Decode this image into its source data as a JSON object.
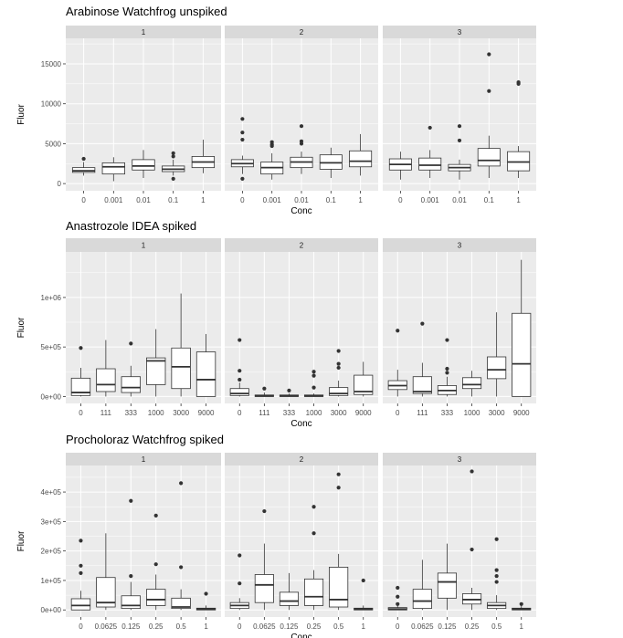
{
  "chart_data": [
    {
      "type": "box",
      "title": "Arabinose Watchfrog unspiked",
      "xlabel": "Conc",
      "ylabel": "Fluor",
      "ylim": [
        -900,
        18200
      ],
      "yticks": [
        0,
        5000,
        10000,
        15000
      ],
      "ytick_labels": [
        "0",
        "5000",
        "10000",
        "15000"
      ],
      "categories": [
        "0",
        "0.001",
        "0.01",
        "0.1",
        "1"
      ],
      "panels": [
        {
          "strip": "1",
          "boxes": [
            {
              "q1": 1400,
              "median": 1600,
              "q3": 2000,
              "lo": 1000,
              "hi": 2700,
              "outliers": [
                3100
              ]
            },
            {
              "q1": 1200,
              "median": 2100,
              "q3": 2600,
              "lo": 300,
              "hi": 3300,
              "outliers": []
            },
            {
              "q1": 1700,
              "median": 2200,
              "q3": 3000,
              "lo": 700,
              "hi": 4200,
              "outliers": []
            },
            {
              "q1": 1500,
              "median": 1800,
              "q3": 2200,
              "lo": 1000,
              "hi": 3000,
              "outliers": [
                3400,
                3800,
                600
              ]
            },
            {
              "q1": 2000,
              "median": 2700,
              "q3": 3400,
              "lo": 1300,
              "hi": 5500,
              "outliers": []
            }
          ]
        },
        {
          "strip": "2",
          "boxes": [
            {
              "q1": 2100,
              "median": 2500,
              "q3": 3000,
              "lo": 1200,
              "hi": 3500,
              "outliers": [
                8100,
                6400,
                5500,
                600
              ]
            },
            {
              "q1": 1200,
              "median": 2000,
              "q3": 2700,
              "lo": 500,
              "hi": 3800,
              "outliers": [
                5200,
                4900,
                4700
              ]
            },
            {
              "q1": 2000,
              "median": 2700,
              "q3": 3300,
              "lo": 1200,
              "hi": 4000,
              "outliers": [
                7200,
                5300,
                5000
              ]
            },
            {
              "q1": 1800,
              "median": 2600,
              "q3": 3600,
              "lo": 700,
              "hi": 4500,
              "outliers": []
            },
            {
              "q1": 2100,
              "median": 2800,
              "q3": 4100,
              "lo": 1000,
              "hi": 6200,
              "outliers": []
            }
          ]
        },
        {
          "strip": "3",
          "boxes": [
            {
              "q1": 1700,
              "median": 2400,
              "q3": 3100,
              "lo": 500,
              "hi": 4000,
              "outliers": []
            },
            {
              "q1": 1700,
              "median": 2300,
              "q3": 3200,
              "lo": 700,
              "hi": 4200,
              "outliers": [
                7000
              ]
            },
            {
              "q1": 1600,
              "median": 2000,
              "q3": 2400,
              "lo": 500,
              "hi": 3000,
              "outliers": [
                7200,
                5400
              ]
            },
            {
              "q1": 2200,
              "median": 2900,
              "q3": 4400,
              "lo": 700,
              "hi": 6000,
              "outliers": [
                16200,
                11600
              ]
            },
            {
              "q1": 1600,
              "median": 2700,
              "q3": 4000,
              "lo": 700,
              "hi": 4700,
              "outliers": [
                12700,
                12500
              ]
            }
          ]
        }
      ]
    },
    {
      "type": "box",
      "title": "Anastrozole IDEA spiked",
      "xlabel": "Conc",
      "ylabel": "Fluor",
      "ylim": [
        -70000,
        1460000
      ],
      "yticks": [
        0,
        500000,
        1000000
      ],
      "ytick_labels": [
        "0e+00",
        "5e+05",
        "1e+06"
      ],
      "categories": [
        "0",
        "111",
        "333",
        "1000",
        "3000",
        "9000"
      ],
      "panels": [
        {
          "strip": "1",
          "boxes": [
            {
              "q1": 10000,
              "median": 40000,
              "q3": 185000,
              "lo": 0,
              "hi": 290000,
              "outliers": [
                490000
              ]
            },
            {
              "q1": 50000,
              "median": 120000,
              "q3": 280000,
              "lo": 0,
              "hi": 570000,
              "outliers": []
            },
            {
              "q1": 40000,
              "median": 90000,
              "q3": 200000,
              "lo": 0,
              "hi": 310000,
              "outliers": [
                535000
              ]
            },
            {
              "q1": 120000,
              "median": 360000,
              "q3": 390000,
              "lo": 0,
              "hi": 680000,
              "outliers": []
            },
            {
              "q1": 80000,
              "median": 300000,
              "q3": 490000,
              "lo": 0,
              "hi": 1040000,
              "outliers": []
            },
            {
              "q1": 0,
              "median": 170000,
              "q3": 450000,
              "lo": 0,
              "hi": 630000,
              "outliers": []
            }
          ]
        },
        {
          "strip": "2",
          "boxes": [
            {
              "q1": 10000,
              "median": 30000,
              "q3": 80000,
              "lo": 0,
              "hi": 140000,
              "outliers": [
                570000,
                260000,
                170000
              ]
            },
            {
              "q1": 0,
              "median": 5000,
              "q3": 15000,
              "lo": 0,
              "hi": 40000,
              "outliers": [
                80000
              ]
            },
            {
              "q1": 0,
              "median": 5000,
              "q3": 15000,
              "lo": 0,
              "hi": 30000,
              "outliers": [
                60000
              ]
            },
            {
              "q1": 0,
              "median": 5000,
              "q3": 15000,
              "lo": 0,
              "hi": 30000,
              "outliers": [
                250000,
                210000,
                90000
              ]
            },
            {
              "q1": 10000,
              "median": 30000,
              "q3": 90000,
              "lo": 0,
              "hi": 160000,
              "outliers": [
                460000,
                330000,
                290000
              ]
            },
            {
              "q1": 20000,
              "median": 50000,
              "q3": 215000,
              "lo": 0,
              "hi": 350000,
              "outliers": []
            }
          ]
        },
        {
          "strip": "3",
          "boxes": [
            {
              "q1": 70000,
              "median": 110000,
              "q3": 160000,
              "lo": 0,
              "hi": 270000,
              "outliers": [
                665000
              ]
            },
            {
              "q1": 30000,
              "median": 50000,
              "q3": 200000,
              "lo": 0,
              "hi": 340000,
              "outliers": [
                735000
              ]
            },
            {
              "q1": 20000,
              "median": 60000,
              "q3": 110000,
              "lo": 0,
              "hi": 200000,
              "outliers": [
                570000,
                280000,
                240000
              ]
            },
            {
              "q1": 80000,
              "median": 120000,
              "q3": 190000,
              "lo": 0,
              "hi": 260000,
              "outliers": []
            },
            {
              "q1": 180000,
              "median": 270000,
              "q3": 400000,
              "lo": 0,
              "hi": 850000,
              "outliers": []
            },
            {
              "q1": 0,
              "median": 330000,
              "q3": 840000,
              "lo": 0,
              "hi": 1380000,
              "outliers": []
            }
          ]
        }
      ]
    },
    {
      "type": "box",
      "title": "Procholoraz Watchfrog spiked",
      "xlabel": "Conc",
      "ylabel": "Fluor",
      "ylim": [
        -24000,
        490000
      ],
      "yticks": [
        0,
        100000,
        200000,
        300000,
        400000
      ],
      "ytick_labels": [
        "0e+00",
        "1e+05",
        "2e+05",
        "3e+05",
        "4e+05"
      ],
      "categories": [
        "0",
        "0.0625",
        "0.125",
        "0.25",
        "0.5",
        "1"
      ],
      "panels": [
        {
          "strip": "1",
          "boxes": [
            {
              "q1": 0,
              "median": 15000,
              "q3": 38000,
              "lo": 0,
              "hi": 65000,
              "outliers": [
                235000,
                150000,
                125000
              ]
            },
            {
              "q1": 10000,
              "median": 25000,
              "q3": 110000,
              "lo": 0,
              "hi": 260000,
              "outliers": []
            },
            {
              "q1": 5000,
              "median": 15000,
              "q3": 48000,
              "lo": 0,
              "hi": 95000,
              "outliers": [
                370000,
                115000
              ]
            },
            {
              "q1": 15000,
              "median": 35000,
              "q3": 70000,
              "lo": 0,
              "hi": 120000,
              "outliers": [
                320000,
                155000
              ]
            },
            {
              "q1": 5000,
              "median": 10000,
              "q3": 40000,
              "lo": 0,
              "hi": 70000,
              "outliers": [
                430000,
                145000
              ]
            },
            {
              "q1": 0,
              "median": 3000,
              "q3": 6000,
              "lo": 0,
              "hi": 15000,
              "outliers": [
                55000
              ]
            }
          ]
        },
        {
          "strip": "2",
          "boxes": [
            {
              "q1": 5000,
              "median": 15000,
              "q3": 25000,
              "lo": 0,
              "hi": 40000,
              "outliers": [
                185000,
                90000
              ]
            },
            {
              "q1": 25000,
              "median": 85000,
              "q3": 120000,
              "lo": 0,
              "hi": 225000,
              "outliers": [
                335000
              ]
            },
            {
              "q1": 15000,
              "median": 30000,
              "q3": 60000,
              "lo": 0,
              "hi": 125000,
              "outliers": []
            },
            {
              "q1": 15000,
              "median": 45000,
              "q3": 105000,
              "lo": 0,
              "hi": 135000,
              "outliers": [
                350000,
                260000
              ]
            },
            {
              "q1": 10000,
              "median": 35000,
              "q3": 145000,
              "lo": 0,
              "hi": 190000,
              "outliers": [
                460000,
                415000
              ]
            },
            {
              "q1": 0,
              "median": 3000,
              "q3": 6000,
              "lo": 0,
              "hi": 15000,
              "outliers": [
                100000
              ]
            }
          ]
        },
        {
          "strip": "3",
          "boxes": [
            {
              "q1": 0,
              "median": 3000,
              "q3": 8000,
              "lo": 0,
              "hi": 15000,
              "outliers": [
                75000,
                45000,
                20000
              ]
            },
            {
              "q1": 5000,
              "median": 30000,
              "q3": 70000,
              "lo": 0,
              "hi": 170000,
              "outliers": []
            },
            {
              "q1": 40000,
              "median": 95000,
              "q3": 125000,
              "lo": 0,
              "hi": 225000,
              "outliers": []
            },
            {
              "q1": 20000,
              "median": 35000,
              "q3": 55000,
              "lo": 0,
              "hi": 75000,
              "outliers": [
                470000,
                205000
              ]
            },
            {
              "q1": 5000,
              "median": 15000,
              "q3": 25000,
              "lo": 0,
              "hi": 50000,
              "outliers": [
                240000,
                135000,
                115000,
                95000
              ]
            },
            {
              "q1": 0,
              "median": 3000,
              "q3": 6000,
              "lo": 0,
              "hi": 15000,
              "outliers": [
                20000
              ]
            }
          ]
        }
      ]
    }
  ],
  "colors": {
    "panel_bg": "#ebebeb",
    "strip_bg": "#d9d9d9",
    "grid": "#ffffff",
    "box_fill": "#ffffff",
    "box_stroke": "#333333",
    "outlier": "#333333",
    "tick_text": "#4d4d4d"
  }
}
